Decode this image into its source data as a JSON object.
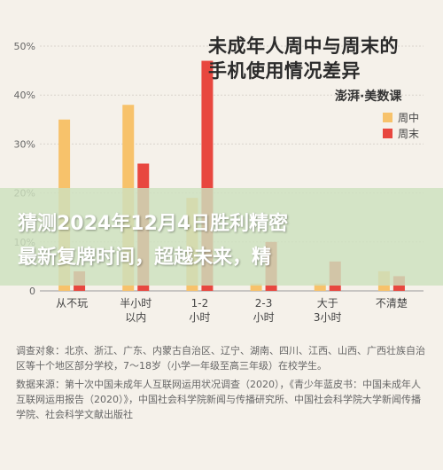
{
  "chart_data": {
    "type": "bar",
    "title_line1": "未成年人周中与周末的",
    "title_line2": "手机使用情况差异",
    "categories": [
      "从不玩",
      "半小时以内",
      "1-2小时",
      "2-3小时",
      "大于3小时",
      "不清楚"
    ],
    "category_lines": [
      [
        "从不玩"
      ],
      [
        "半小时",
        "以内"
      ],
      [
        "1-2",
        "小时"
      ],
      [
        "2-3",
        "小时"
      ],
      [
        "大于",
        "3小时"
      ],
      [
        "不清楚"
      ]
    ],
    "series": [
      {
        "name": "周中",
        "values": [
          35,
          38,
          19,
          1.5,
          1.5,
          4
        ],
        "color": "#f7c26b"
      },
      {
        "name": "周末",
        "values": [
          4,
          26,
          47,
          10,
          6,
          3
        ],
        "color": "#e8473f"
      }
    ],
    "ylim": [
      0,
      50
    ],
    "yticks": [
      0,
      10,
      20,
      30,
      40,
      50
    ],
    "ytick_labels": [
      "0",
      "10%",
      "20%",
      "30%",
      "40%",
      "50%"
    ],
    "grid": true,
    "legend_position": "top-right"
  },
  "brand": "澎湃·美数课",
  "overlay": {
    "line1": "猜测2024年12月4日胜利精密",
    "line2": "最新复牌时间，超越未来，精"
  },
  "notes": {
    "survey_subjects": "调查对象：北京、浙江、广东、内蒙古自治区、辽宁、湖南、四川、江西、山西、广西壮族自治区等十个地区部分学校，7～18岁（小学一年级至高三年级）在校学生。",
    "source": "数据来源：第十次中国未成年人互联网运用状况调查（2020），《青少年蓝皮书：中国未成年人互联网运用报告（2020）》，中国社会科学院新闻与传播研究所、中国社会科学院大学新闻传播学院、社会科学文献出版社"
  }
}
